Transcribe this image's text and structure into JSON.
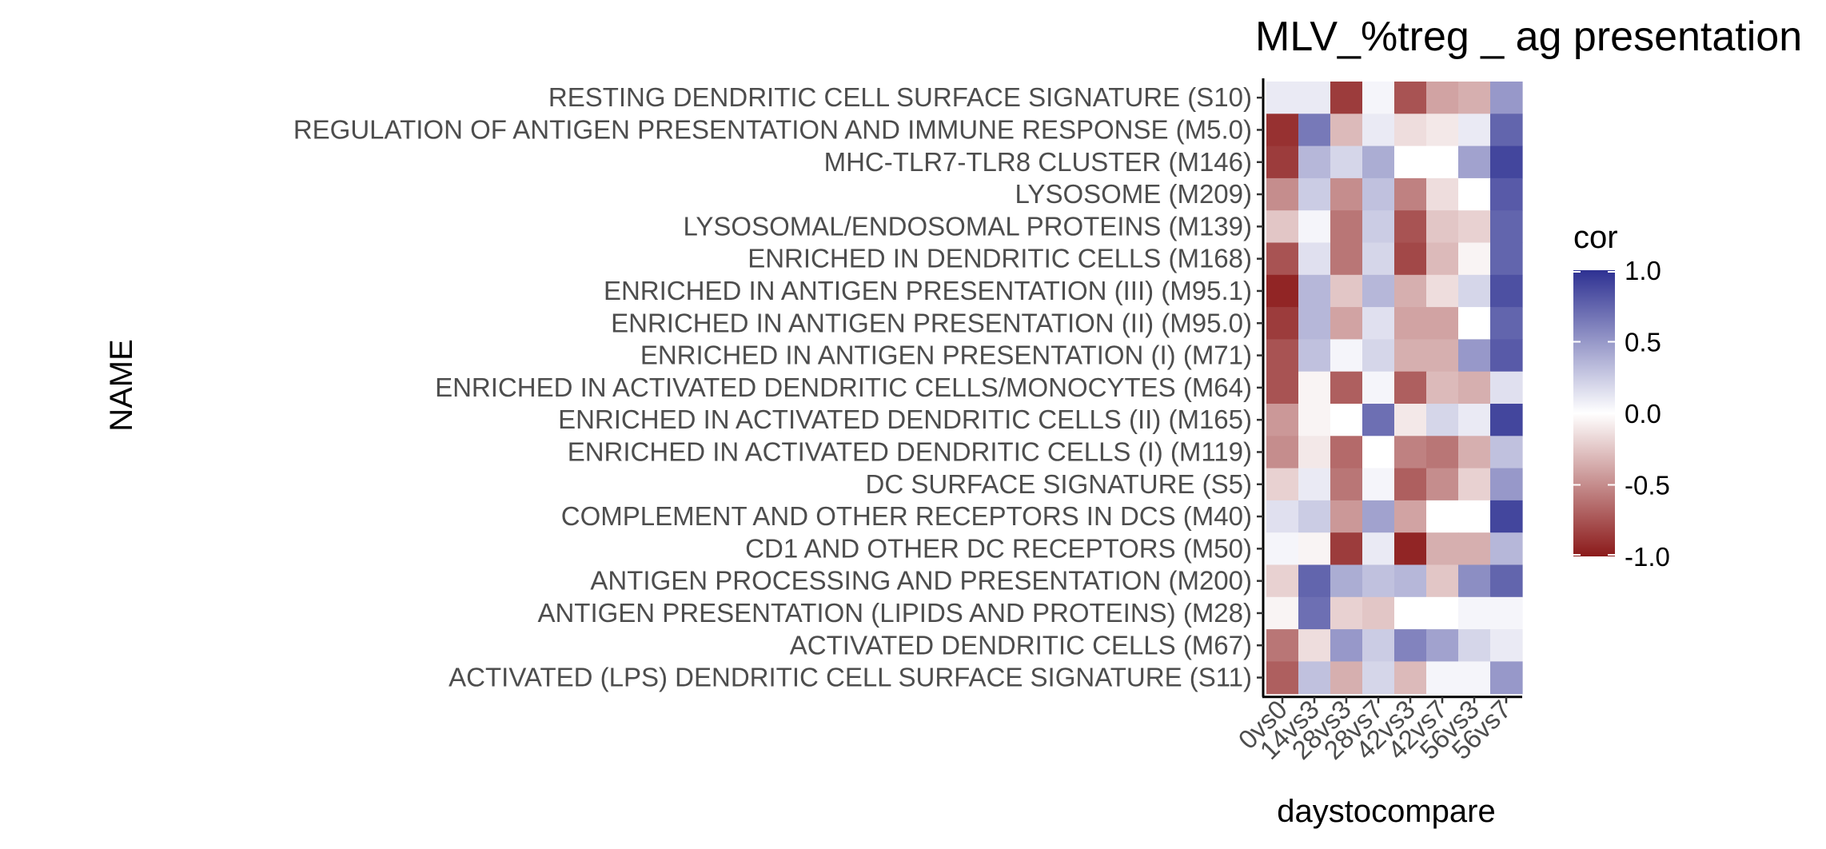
{
  "chart_data": {
    "type": "heatmap",
    "title": "MLV_%treg _ ag presentation",
    "xlabel": "daystocompare",
    "ylabel": "NAME",
    "x": [
      "0vs0",
      "14vs3",
      "28vs3",
      "28vs7",
      "42vs3",
      "42vs7",
      "56vs3",
      "56vs7"
    ],
    "y": [
      "RESTING DENDRITIC CELL SURFACE SIGNATURE (S10)",
      "REGULATION OF ANTIGEN PRESENTATION AND IMMUNE RESPONSE (M5.0)",
      "MHC-TLR7-TLR8 CLUSTER (M146)",
      "LYSOSOME (M209)",
      "LYSOSOMAL/ENDOSOMAL PROTEINS (M139)",
      "ENRICHED IN DENDRITIC CELLS (M168)",
      "ENRICHED IN ANTIGEN PRESENTATION (III) (M95.1)",
      "ENRICHED IN ANTIGEN PRESENTATION (II) (M95.0)",
      "ENRICHED IN ANTIGEN PRESENTATION (I) (M71)",
      "ENRICHED IN ACTIVATED DENDRITIC CELLS/MONOCYTES (M64)",
      "ENRICHED IN ACTIVATED DENDRITIC CELLS (II) (M165)",
      "ENRICHED IN ACTIVATED DENDRITIC CELLS (I) (M119)",
      "DC SURFACE SIGNATURE (S5)",
      "COMPLEMENT AND OTHER RECEPTORS IN DCS (M40)",
      "CD1 AND OTHER DC RECEPTORS (M50)",
      "ANTIGEN PROCESSING AND PRESENTATION (M200)",
      "ANTIGEN PRESENTATION (LIPIDS AND PROTEINS) (M28)",
      "ACTIVATED DENDRITIC CELLS (M67)",
      "ACTIVATED (LPS) DENDRITIC CELL SURFACE SIGNATURE (S11)"
    ],
    "values": [
      [
        0.1,
        0.1,
        -0.85,
        0.05,
        -0.75,
        -0.4,
        -0.35,
        0.5
      ],
      [
        -0.9,
        0.65,
        -0.3,
        0.1,
        -0.15,
        -0.1,
        0.1,
        0.75
      ],
      [
        -0.85,
        0.35,
        0.2,
        0.4,
        0.0,
        0.0,
        0.45,
        0.9
      ],
      [
        -0.5,
        0.25,
        -0.5,
        0.3,
        -0.55,
        -0.15,
        0.0,
        0.8
      ],
      [
        -0.25,
        0.05,
        -0.6,
        0.25,
        -0.75,
        -0.25,
        -0.2,
        0.75
      ],
      [
        -0.75,
        0.15,
        -0.6,
        0.2,
        -0.8,
        -0.3,
        -0.05,
        0.75
      ],
      [
        -0.95,
        0.35,
        -0.25,
        0.35,
        -0.35,
        -0.15,
        0.2,
        0.85
      ],
      [
        -0.85,
        0.35,
        -0.4,
        0.15,
        -0.4,
        -0.4,
        0.0,
        0.75
      ],
      [
        -0.75,
        0.3,
        0.05,
        0.2,
        -0.35,
        -0.35,
        0.5,
        0.8
      ],
      [
        -0.75,
        -0.05,
        -0.7,
        0.05,
        -0.7,
        -0.3,
        -0.35,
        0.15
      ],
      [
        -0.45,
        -0.05,
        0.0,
        0.7,
        -0.1,
        0.2,
        0.1,
        0.9
      ],
      [
        -0.5,
        -0.1,
        -0.65,
        0.0,
        -0.55,
        -0.6,
        -0.35,
        0.3
      ],
      [
        -0.2,
        0.1,
        -0.6,
        0.05,
        -0.7,
        -0.5,
        -0.2,
        0.5
      ],
      [
        0.15,
        0.25,
        -0.45,
        0.45,
        -0.4,
        0.0,
        0.0,
        0.9
      ],
      [
        0.05,
        -0.05,
        -0.85,
        0.1,
        -0.95,
        -0.35,
        -0.35,
        0.35
      ],
      [
        -0.2,
        0.75,
        0.4,
        0.3,
        0.35,
        -0.25,
        0.55,
        0.75
      ],
      [
        -0.05,
        0.7,
        -0.2,
        -0.25,
        0.0,
        0.0,
        0.05,
        0.05
      ],
      [
        -0.6,
        -0.15,
        0.5,
        0.25,
        0.6,
        0.45,
        0.2,
        0.1
      ],
      [
        -0.7,
        0.3,
        -0.35,
        0.2,
        -0.3,
        0.05,
        0.05,
        0.5
      ]
    ],
    "legend": {
      "title": "cor",
      "placement": "right",
      "range": [
        -1.0,
        1.0
      ],
      "ticks": [
        "1.0",
        "0.5",
        "0.0",
        "-0.5",
        "-1.0"
      ],
      "colors": {
        "low": "#8b1a1a",
        "mid": "#ffffff",
        "high": "#2e3192"
      }
    }
  }
}
